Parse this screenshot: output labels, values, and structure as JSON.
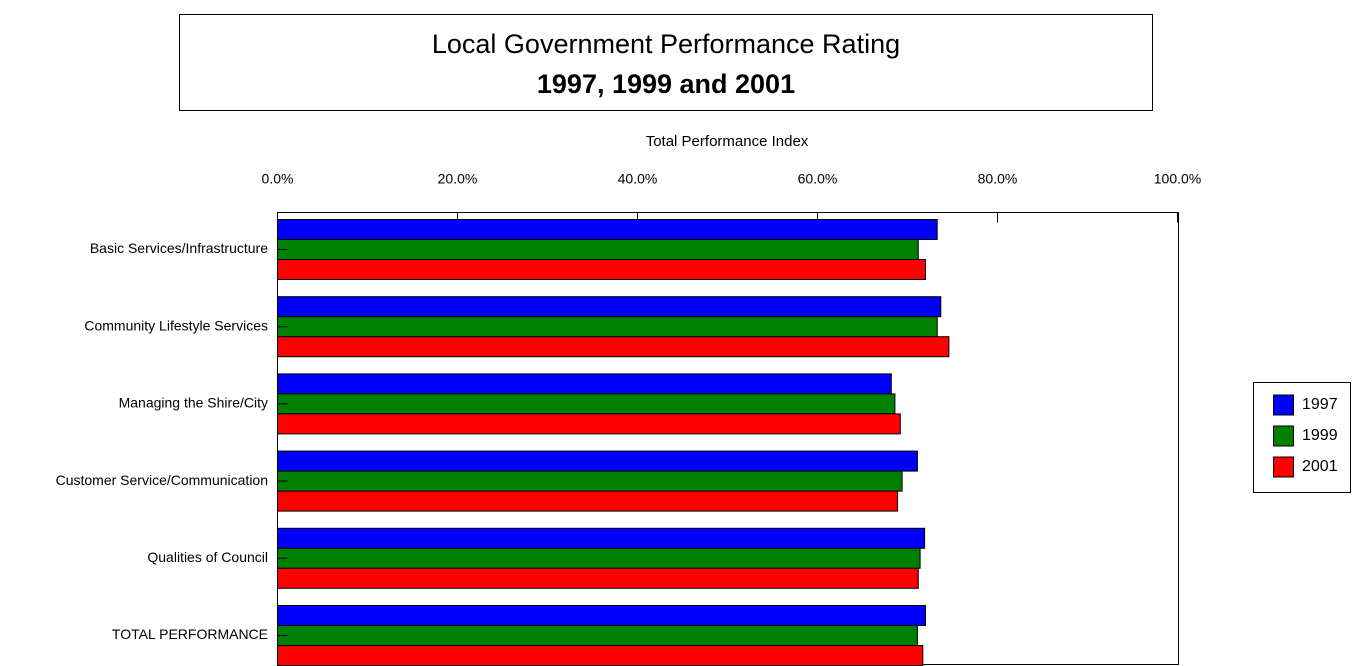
{
  "chart_data": {
    "type": "bar",
    "orientation": "horizontal",
    "title": "Local Government Performance Rating",
    "subtitle": "1997, 1999 and 2001",
    "x_label": "Total Performance Index",
    "categories": [
      "Basic Services/Infrastructure",
      "Community Lifestyle Services",
      "Managing the Shire/City",
      "Customer Service/Communication",
      "Qualities of Council",
      "TOTAL PERFORMANCE"
    ],
    "series": [
      {
        "name": "1997",
        "color": "#0000ff",
        "values": [
          73.3,
          73.7,
          68.2,
          71.1,
          71.9,
          72.0
        ]
      },
      {
        "name": "1999",
        "color": "#008000",
        "values": [
          71.2,
          73.3,
          68.6,
          69.4,
          71.4,
          71.1
        ]
      },
      {
        "name": "2001",
        "color": "#ff0000",
        "values": [
          72.0,
          74.6,
          69.2,
          68.9,
          71.2,
          71.7
        ]
      }
    ],
    "xlim": [
      0,
      100
    ],
    "xticks": [
      {
        "value": 0,
        "label": "0.0%"
      },
      {
        "value": 20,
        "label": "20.0%"
      },
      {
        "value": 40,
        "label": "40.0%"
      },
      {
        "value": 60,
        "label": "60.0%"
      },
      {
        "value": 80,
        "label": "80.0%"
      },
      {
        "value": 100,
        "label": "100.0%"
      }
    ],
    "legend": "right"
  }
}
